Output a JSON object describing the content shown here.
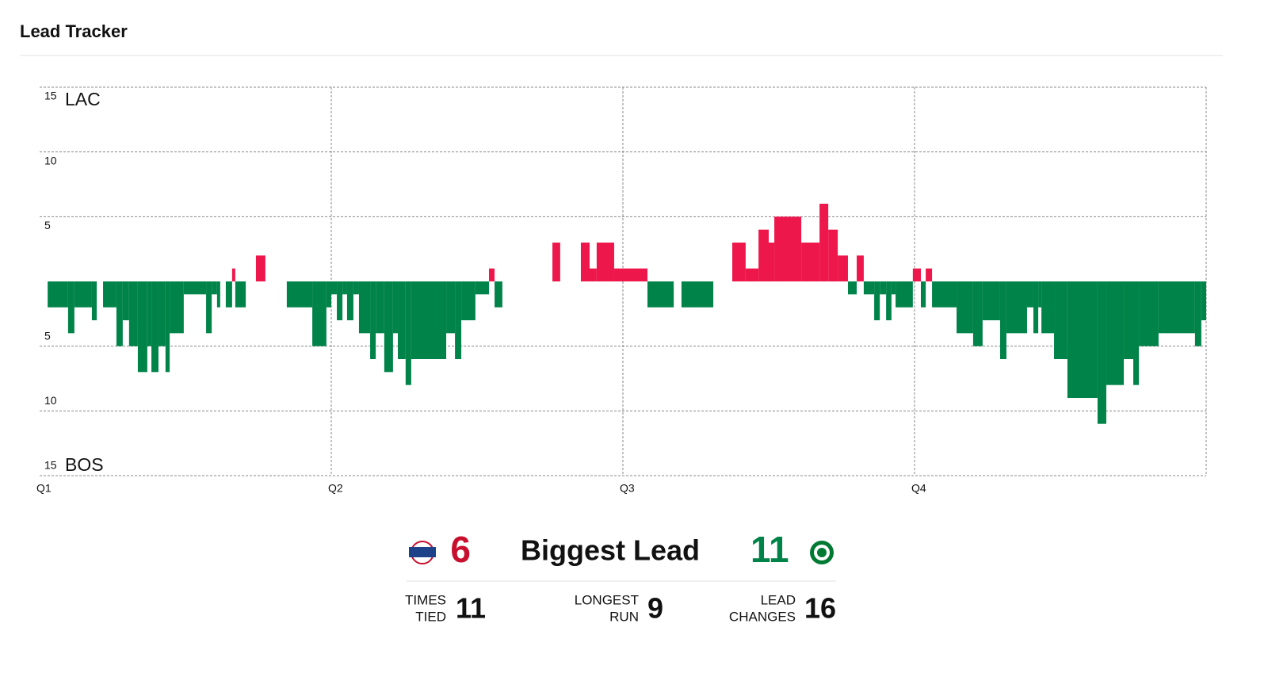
{
  "header": {
    "title": "Lead Tracker"
  },
  "chart_data": {
    "type": "bar",
    "teams": {
      "positive": {
        "name": "LAC",
        "color": "#ed174c"
      },
      "negative": {
        "name": "BOS",
        "color": "#008348"
      }
    },
    "x": [
      0,
      0.33,
      1.17,
      1.43,
      2.15,
      2.35,
      2.61,
      3.16,
      3.42,
      3.68,
      4.04,
      4.43,
      4.6,
      4.89,
      5.18,
      5.35,
      5.93,
      6.85,
      7.08,
      7.3,
      7.43,
      7.66,
      7.92,
      8.05,
      8.48,
      8.9,
      9.29,
      10.17,
      11.22,
      11.8,
      12,
      12.23,
      12.46,
      12.65,
      12.91,
      13.14,
      13.6,
      13.83,
      14.18,
      14.54,
      14.74,
      15.06,
      15.29,
      16.73,
      17.09,
      17.35,
      17.93,
      18.49,
      18.72,
      19.04,
      21.1,
      21.42,
      22.27,
      22.63,
      22.92,
      23.64,
      25.01,
      26.09,
      26.41,
      27.72,
      28.5,
      29.05,
      29.58,
      30,
      30.23,
      31.34,
      32.09,
      32.45,
      32.84,
      33.26,
      33.62,
      33.91,
      34.34,
      34.57,
      34.83,
      35.05,
      35.22,
      35.93,
      36.26,
      36.46,
      36.72,
      37.73,
      38.41,
      38.8,
      39.52,
      39.78,
      40.63,
      40.89,
      41.09,
      41.22,
      41.74,
      42.29,
      43.53,
      43.89,
      44.61,
      45,
      45.23,
      46.04,
      47.54,
      47.8
    ],
    "values": [
      0,
      -2,
      -4,
      -2,
      -3,
      0,
      -2,
      -5,
      -3,
      -5,
      -7,
      -5,
      -7,
      -5,
      -7,
      -4,
      -1,
      -4,
      -1,
      -2,
      0,
      -2,
      1,
      -2,
      0,
      2,
      0,
      -2,
      -5,
      -2,
      -1,
      -3,
      -1,
      -3,
      -1,
      -4,
      -6,
      -4,
      -7,
      -4,
      -6,
      -8,
      -6,
      -4,
      -6,
      -3,
      -1,
      1,
      -2,
      0,
      3,
      0,
      3,
      1,
      3,
      1,
      -2,
      0,
      -2,
      0,
      3,
      1,
      4,
      3,
      5,
      3,
      6,
      4,
      2,
      -1,
      2,
      -1,
      -3,
      -1,
      -3,
      -1,
      -2,
      1,
      -2,
      1,
      -2,
      -4,
      -5,
      -3,
      -6,
      -4,
      -2,
      -4,
      -2,
      -4,
      -6,
      -9,
      -11,
      -8,
      -6,
      -8,
      -5,
      -4,
      -5,
      -3
    ],
    "xlim": [
      0,
      48
    ],
    "xticks": [
      {
        "value": 0,
        "label": "Q1"
      },
      {
        "value": 12,
        "label": "Q2"
      },
      {
        "value": 24,
        "label": "Q3"
      },
      {
        "value": 36,
        "label": "Q4"
      }
    ],
    "ylim": [
      -15,
      15
    ],
    "yticks": [
      15,
      10,
      5,
      {
        "value": -5,
        "label": "5"
      },
      {
        "value": -10,
        "label": "10"
      },
      {
        "value": -15,
        "label": "15"
      }
    ],
    "grid": true
  },
  "stats": {
    "biggest_lead": {
      "label": "Biggest Lead",
      "LAC": 6,
      "BOS": 11
    },
    "items": [
      {
        "label": [
          "TIMES",
          "TIED"
        ],
        "value": 11
      },
      {
        "label": [
          "LONGEST",
          "RUN"
        ],
        "value": 9
      },
      {
        "label": [
          "LEAD",
          "CHANGES"
        ],
        "value": 16
      }
    ]
  }
}
